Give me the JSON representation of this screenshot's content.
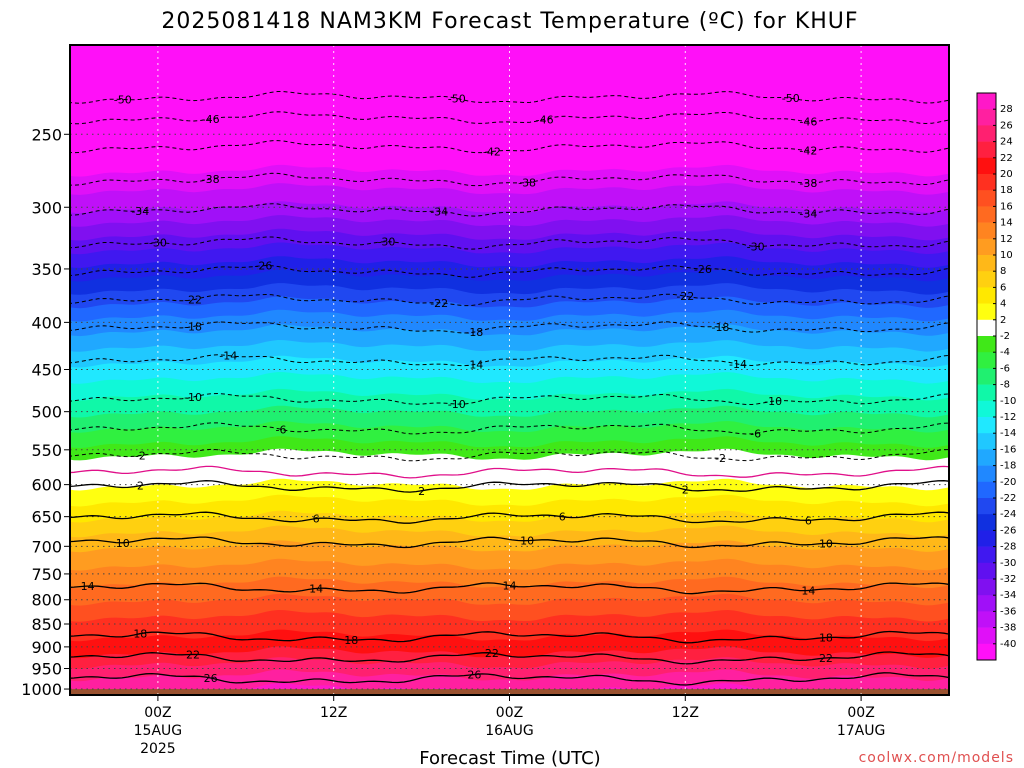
{
  "title": "2025081418 NAM3KM Forecast Temperature (ºC) for KHUF",
  "credit": "coolwx.com/models",
  "chart_data": {
    "type": "heatmap",
    "title": "2025081418 NAM3KM Forecast Temperature (ºC) for KHUF",
    "xlabel": "Forecast Time (UTC)",
    "ylabel": "",
    "y_axis": {
      "scale": "log",
      "reversed": true,
      "range": [
        200,
        1015
      ],
      "unit": "hPa",
      "ticks": [
        250,
        300,
        350,
        400,
        450,
        500,
        550,
        600,
        650,
        700,
        750,
        800,
        850,
        900,
        950,
        1000
      ]
    },
    "x_axis": {
      "range_hours": [
        -5,
        45
      ],
      "ticks": [
        {
          "hour": 0,
          "label": "00Z",
          "sub": "15AUG",
          "sub2": "2025"
        },
        {
          "hour": 10,
          "label": "12Z",
          "sub": "",
          "sub2": ""
        },
        {
          "hour": 20,
          "label": "00Z",
          "sub": "16AUG",
          "sub2": ""
        },
        {
          "hour": 30,
          "label": "12Z",
          "sub": "",
          "sub2": ""
        },
        {
          "hour": 40,
          "label": "00Z",
          "sub": "17AUG",
          "sub2": ""
        }
      ]
    },
    "grid": true,
    "legend": "colorbar-right",
    "colorbar": {
      "labels": [
        "28",
        "26",
        "24",
        "22",
        "20",
        "18",
        "16",
        "14",
        "12",
        "10",
        "8",
        "6",
        "4",
        "2",
        "-2",
        "-4",
        "-6",
        "-8",
        "-10",
        "-12",
        "-14",
        "-16",
        "-18",
        "-20",
        "-22",
        "-24",
        "-26",
        "-28",
        "-30",
        "-32",
        "-34",
        "-36",
        "-38",
        "-40"
      ],
      "colors": [
        "#ff18c8",
        "#ff20a0",
        "#ff2070",
        "#ff2040",
        "#ff1010",
        "#ff3020",
        "#ff5020",
        "#ff6a20",
        "#ff8420",
        "#ff9c20",
        "#ffb818",
        "#ffd010",
        "#ffe800",
        "#ffff10",
        "#ffffff",
        "#40e818",
        "#30f040",
        "#20f070",
        "#10f8a8",
        "#10f8d8",
        "#20e8ff",
        "#20c8ff",
        "#20a8ff",
        "#2088ff",
        "#2068ff",
        "#2048f0",
        "#1030e0",
        "#2020e8",
        "#4018f0",
        "#6010f0",
        "#8010f0",
        "#a010f8",
        "#c010f8",
        "#e010f8",
        "#ff10f8"
      ]
    },
    "temperature_profile": [
      {
        "p": 200,
        "t": -56
      },
      {
        "p": 225,
        "t": -50
      },
      {
        "p": 250,
        "t": -44
      },
      {
        "p": 300,
        "t": -36
      },
      {
        "p": 350,
        "t": -27
      },
      {
        "p": 400,
        "t": -19
      },
      {
        "p": 450,
        "t": -13
      },
      {
        "p": 500,
        "t": -8
      },
      {
        "p": 550,
        "t": -3
      },
      {
        "p": 570,
        "t": 0
      },
      {
        "p": 600,
        "t": 2
      },
      {
        "p": 650,
        "t": 6
      },
      {
        "p": 700,
        "t": 10
      },
      {
        "p": 750,
        "t": 13
      },
      {
        "p": 800,
        "t": 16
      },
      {
        "p": 850,
        "t": 19
      },
      {
        "p": 900,
        "t": 21
      },
      {
        "p": 950,
        "t": 25
      },
      {
        "p": 1000,
        "t": 28
      }
    ],
    "contours": [
      {
        "p": 228,
        "label": "-50",
        "dashed": true,
        "label_hours": [
          -2,
          17,
          36
        ]
      },
      {
        "p": 240,
        "label": "-46",
        "dashed": true,
        "label_hours": [
          3,
          22,
          37
        ]
      },
      {
        "p": 258,
        "label": "-42",
        "dashed": true,
        "label_hours": [
          19,
          37
        ]
      },
      {
        "p": 280,
        "label": "-38",
        "dashed": true,
        "label_hours": [
          3,
          21,
          37
        ]
      },
      {
        "p": 302,
        "label": "-34",
        "dashed": true,
        "label_hours": [
          -1,
          16,
          37
        ]
      },
      {
        "p": 328,
        "label": "-30",
        "dashed": true,
        "label_hours": [
          0,
          13,
          34
        ]
      },
      {
        "p": 352,
        "label": "-26",
        "dashed": true,
        "label_hours": [
          6,
          31
        ]
      },
      {
        "p": 378,
        "label": "-22",
        "dashed": true,
        "label_hours": [
          2,
          16,
          30
        ]
      },
      {
        "p": 405,
        "label": "-18",
        "dashed": true,
        "label_hours": [
          2,
          18,
          32
        ]
      },
      {
        "p": 440,
        "label": "-14",
        "dashed": true,
        "label_hours": [
          4,
          18,
          33
        ]
      },
      {
        "p": 485,
        "label": "-10",
        "dashed": true,
        "label_hours": [
          2,
          17,
          35
        ]
      },
      {
        "p": 522,
        "label": "-6",
        "dashed": true,
        "label_hours": [
          7,
          34
        ]
      },
      {
        "p": 558,
        "label": "-2",
        "dashed": true,
        "label_hours": [
          -1,
          32
        ]
      },
      {
        "p": 582,
        "label": "",
        "dashed": false,
        "label_hours": []
      },
      {
        "p": 603,
        "label": "2",
        "dashed": false,
        "label_hours": [
          -1,
          15,
          30
        ]
      },
      {
        "p": 652,
        "label": "6",
        "dashed": false,
        "label_hours": [
          9,
          23,
          37
        ]
      },
      {
        "p": 693,
        "label": "10",
        "dashed": false,
        "label_hours": [
          -2,
          21,
          38
        ]
      },
      {
        "p": 777,
        "label": "14",
        "dashed": false,
        "label_hours": [
          -4,
          9,
          20,
          37
        ]
      },
      {
        "p": 878,
        "label": "18",
        "dashed": false,
        "label_hours": [
          -1,
          11,
          38
        ]
      },
      {
        "p": 925,
        "label": "22",
        "dashed": false,
        "label_hours": [
          2,
          19,
          38
        ]
      },
      {
        "p": 975,
        "label": "26",
        "dashed": false,
        "label_hours": [
          3,
          18
        ]
      }
    ]
  }
}
